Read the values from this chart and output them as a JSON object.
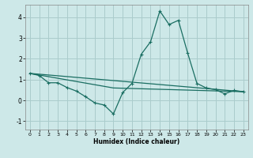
{
  "background_color": "#cde8e8",
  "grid_color": "#aacccc",
  "line_color": "#1a6e62",
  "xlabel": "Humidex (Indice chaleur)",
  "xlim": [
    -0.5,
    23.5
  ],
  "ylim": [
    -1.4,
    4.6
  ],
  "yticks": [
    -1,
    0,
    1,
    2,
    3,
    4
  ],
  "xticks": [
    0,
    1,
    2,
    3,
    4,
    5,
    6,
    7,
    8,
    9,
    10,
    11,
    12,
    13,
    14,
    15,
    16,
    17,
    18,
    19,
    20,
    21,
    22,
    23
  ],
  "curve1_x": [
    0,
    1,
    2,
    3,
    4,
    5,
    6,
    7,
    8,
    9,
    10,
    11,
    12,
    13,
    14,
    15,
    16,
    17,
    18,
    19,
    20,
    21,
    22,
    23
  ],
  "curve1_y": [
    1.3,
    1.2,
    0.85,
    0.85,
    0.62,
    0.45,
    0.18,
    -0.12,
    -0.22,
    -0.65,
    0.38,
    0.82,
    2.22,
    2.82,
    4.3,
    3.65,
    3.85,
    2.28,
    0.82,
    0.6,
    0.52,
    0.32,
    0.48,
    0.42
  ],
  "curve2_x": [
    0,
    23
  ],
  "curve2_y": [
    1.3,
    0.42
  ],
  "curve3_x": [
    0,
    9,
    23
  ],
  "curve3_y": [
    1.3,
    0.6,
    0.42
  ]
}
